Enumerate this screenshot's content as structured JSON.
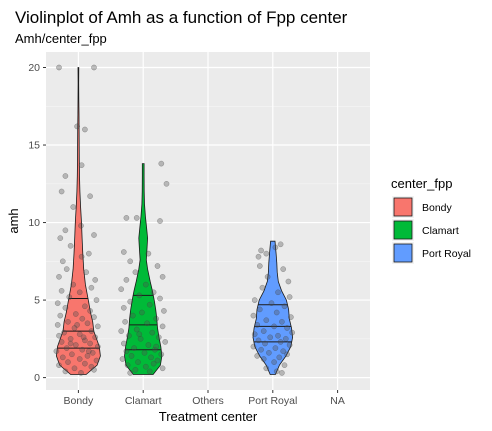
{
  "chart_data": {
    "type": "violin",
    "title": "Violinplot of Amh as a function of Fpp center",
    "subtitle": "Amh/center_fpp",
    "xlabel": "Treatment center",
    "ylabel": "amh",
    "categories": [
      "Bondy",
      "Clamart",
      "Others",
      "Port Royal",
      "NA"
    ],
    "ylim": [
      -0.8,
      21.0
    ],
    "yticks": [
      0,
      5,
      10,
      15,
      20
    ],
    "grid": true,
    "legend": {
      "title": "center_fpp",
      "placement": "right",
      "entries": [
        {
          "label": "Bondy",
          "color": "#F8766D"
        },
        {
          "label": "Clamart",
          "color": "#00BA38"
        },
        {
          "label": "Port Royal",
          "color": "#619CFF"
        }
      ]
    },
    "series": [
      {
        "category": "Bondy",
        "color": "#F8766D",
        "min": 0.2,
        "max": 20.0,
        "quantiles": [
          1.9,
          3.0,
          5.1
        ],
        "density": [
          [
            0.2,
            0.35
          ],
          [
            0.8,
            0.85
          ],
          [
            1.4,
            1.0
          ],
          [
            2.0,
            0.95
          ],
          [
            2.6,
            0.8
          ],
          [
            3.0,
            0.7
          ],
          [
            3.6,
            0.65
          ],
          [
            4.2,
            0.55
          ],
          [
            5.0,
            0.45
          ],
          [
            6.0,
            0.32
          ],
          [
            7.0,
            0.24
          ],
          [
            8.0,
            0.2
          ],
          [
            9.0,
            0.17
          ],
          [
            10.0,
            0.14
          ],
          [
            11.0,
            0.1
          ],
          [
            12.0,
            0.07
          ],
          [
            13.0,
            0.05
          ],
          [
            14.0,
            0.04
          ],
          [
            15.0,
            0.035
          ],
          [
            16.0,
            0.03
          ],
          [
            17.0,
            0.025
          ],
          [
            18.0,
            0.02
          ],
          [
            19.0,
            0.015
          ],
          [
            20.0,
            0.02
          ]
        ],
        "points": [
          [
            -0.3,
            20.0
          ],
          [
            0.24,
            20.0
          ],
          [
            0.1,
            16.0
          ],
          [
            -0.02,
            16.2
          ],
          [
            -0.2,
            13.0
          ],
          [
            0.05,
            13.7
          ],
          [
            -0.26,
            12.0
          ],
          [
            0.18,
            11.7
          ],
          [
            -0.08,
            11.0
          ],
          [
            -0.2,
            9.5
          ],
          [
            0.04,
            9.8
          ],
          [
            -0.28,
            9.0
          ],
          [
            0.24,
            9.2
          ],
          [
            -0.12,
            8.5
          ],
          [
            0.16,
            8.0
          ],
          [
            -0.24,
            7.5
          ],
          [
            0.05,
            7.8
          ],
          [
            -0.18,
            7.0
          ],
          [
            0.12,
            6.8
          ],
          [
            -0.3,
            6.5
          ],
          [
            0.26,
            6.3
          ],
          [
            -0.08,
            6.0
          ],
          [
            0.2,
            5.8
          ],
          [
            -0.26,
            5.6
          ],
          [
            0.02,
            5.5
          ],
          [
            -0.14,
            5.2
          ],
          [
            0.28,
            5.0
          ],
          [
            -0.32,
            4.8
          ],
          [
            0.1,
            4.6
          ],
          [
            -0.2,
            4.5
          ],
          [
            0.18,
            4.3
          ],
          [
            -0.04,
            4.1
          ],
          [
            -0.28,
            4.0
          ],
          [
            0.24,
            3.9
          ],
          [
            0.06,
            3.8
          ],
          [
            -0.16,
            3.6
          ],
          [
            0.14,
            3.5
          ],
          [
            -0.32,
            3.4
          ],
          [
            0.3,
            3.3
          ],
          [
            -0.06,
            3.2
          ],
          [
            0.2,
            3.0
          ],
          [
            -0.22,
            2.9
          ],
          [
            0.02,
            2.8
          ],
          [
            -0.3,
            2.7
          ],
          [
            0.26,
            2.6
          ],
          [
            -0.12,
            2.5
          ],
          [
            0.1,
            2.4
          ],
          [
            -0.26,
            2.3
          ],
          [
            0.18,
            2.2
          ],
          [
            -0.04,
            2.1
          ],
          [
            0.3,
            2.0
          ],
          [
            -0.18,
            1.9
          ],
          [
            0.06,
            1.8
          ],
          [
            -0.34,
            1.7
          ],
          [
            0.22,
            1.6
          ],
          [
            -0.1,
            1.5
          ],
          [
            0.14,
            1.4
          ],
          [
            -0.24,
            1.3
          ],
          [
            0.02,
            1.2
          ],
          [
            0.28,
            1.1
          ],
          [
            -0.16,
            1.0
          ],
          [
            0.1,
            0.9
          ],
          [
            -0.3,
            0.8
          ],
          [
            0.2,
            0.7
          ],
          [
            -0.06,
            0.6
          ],
          [
            0.24,
            0.5
          ],
          [
            -0.2,
            0.4
          ],
          [
            0.04,
            0.3
          ],
          [
            -0.12,
            2.2
          ],
          [
            0.16,
            1.7
          ],
          [
            -0.02,
            3.4
          ],
          [
            0.08,
            2.6
          ]
        ]
      },
      {
        "category": "Clamart",
        "color": "#00BA38",
        "min": 0.2,
        "max": 13.8,
        "quantiles": [
          1.8,
          3.4,
          5.3
        ],
        "density": [
          [
            0.2,
            0.45
          ],
          [
            0.8,
            0.78
          ],
          [
            1.4,
            0.85
          ],
          [
            2.0,
            0.8
          ],
          [
            2.6,
            0.72
          ],
          [
            3.2,
            0.65
          ],
          [
            3.8,
            0.62
          ],
          [
            4.4,
            0.57
          ],
          [
            5.0,
            0.5
          ],
          [
            5.6,
            0.42
          ],
          [
            6.2,
            0.32
          ],
          [
            7.0,
            0.2
          ],
          [
            7.6,
            0.14
          ],
          [
            8.2,
            0.17
          ],
          [
            9.0,
            0.2
          ],
          [
            9.6,
            0.16
          ],
          [
            10.4,
            0.1
          ],
          [
            11.2,
            0.06
          ],
          [
            12.0,
            0.045
          ],
          [
            13.0,
            0.04
          ],
          [
            13.8,
            0.04
          ]
        ],
        "points": [
          [
            0.28,
            13.8
          ],
          [
            0.36,
            12.5
          ],
          [
            -0.26,
            10.3
          ],
          [
            -0.1,
            10.3
          ],
          [
            0.26,
            10.1
          ],
          [
            -0.3,
            8.1
          ],
          [
            0.08,
            8.0
          ],
          [
            -0.2,
            7.5
          ],
          [
            0.22,
            7.2
          ],
          [
            -0.12,
            6.8
          ],
          [
            0.3,
            6.5
          ],
          [
            -0.26,
            6.3
          ],
          [
            0.04,
            6.0
          ],
          [
            -0.34,
            5.7
          ],
          [
            0.16,
            5.5
          ],
          [
            -0.06,
            5.3
          ],
          [
            0.26,
            5.1
          ],
          [
            -0.2,
            4.9
          ],
          [
            0.1,
            4.7
          ],
          [
            -0.3,
            4.5
          ],
          [
            0.32,
            4.3
          ],
          [
            -0.02,
            4.2
          ],
          [
            -0.16,
            4.0
          ],
          [
            0.2,
            3.8
          ],
          [
            -0.28,
            3.6
          ],
          [
            0.06,
            3.5
          ],
          [
            0.3,
            3.3
          ],
          [
            -0.1,
            3.1
          ],
          [
            -0.34,
            3.0
          ],
          [
            0.14,
            2.9
          ],
          [
            -0.22,
            2.7
          ],
          [
            0.24,
            2.6
          ],
          [
            -0.04,
            2.5
          ],
          [
            0.34,
            2.3
          ],
          [
            -0.3,
            2.2
          ],
          [
            0.08,
            2.1
          ],
          [
            -0.14,
            1.9
          ],
          [
            0.18,
            1.8
          ],
          [
            -0.26,
            1.7
          ],
          [
            0.02,
            1.6
          ],
          [
            0.28,
            1.5
          ],
          [
            -0.18,
            1.4
          ],
          [
            0.12,
            1.3
          ],
          [
            -0.32,
            1.2
          ],
          [
            0.22,
            1.1
          ],
          [
            -0.08,
            1.0
          ],
          [
            0.16,
            0.9
          ],
          [
            -0.24,
            0.8
          ],
          [
            0.04,
            0.7
          ],
          [
            0.3,
            0.6
          ],
          [
            -0.12,
            0.5
          ],
          [
            0.1,
            0.4
          ],
          [
            -0.2,
            0.3
          ],
          [
            0.2,
            2.0
          ],
          [
            -0.06,
            2.8
          ]
        ]
      },
      {
        "category": "Port Royal",
        "color": "#619CFF",
        "min": 0.2,
        "max": 8.8,
        "quantiles": [
          2.3,
          3.3,
          4.7
        ],
        "density": [
          [
            0.2,
            0.12
          ],
          [
            0.8,
            0.3
          ],
          [
            1.4,
            0.6
          ],
          [
            2.0,
            0.82
          ],
          [
            2.6,
            0.9
          ],
          [
            3.2,
            0.85
          ],
          [
            3.8,
            0.75
          ],
          [
            4.4,
            0.72
          ],
          [
            5.0,
            0.62
          ],
          [
            5.6,
            0.4
          ],
          [
            6.2,
            0.25
          ],
          [
            6.8,
            0.2
          ],
          [
            7.4,
            0.18
          ],
          [
            8.0,
            0.15
          ],
          [
            8.8,
            0.1
          ]
        ],
        "points": [
          [
            -0.18,
            8.2
          ],
          [
            -0.1,
            8.0
          ],
          [
            0.12,
            8.6
          ],
          [
            0.04,
            8.4
          ],
          [
            -0.22,
            7.8
          ],
          [
            -0.2,
            7.2
          ],
          [
            0.16,
            7.0
          ],
          [
            -0.08,
            6.5
          ],
          [
            0.24,
            6.2
          ],
          [
            -0.16,
            5.8
          ],
          [
            0.08,
            5.5
          ],
          [
            0.26,
            5.2
          ],
          [
            -0.28,
            5.0
          ],
          [
            -0.02,
            4.8
          ],
          [
            0.18,
            4.6
          ],
          [
            -0.2,
            4.4
          ],
          [
            0.06,
            4.2
          ],
          [
            -0.3,
            4.0
          ],
          [
            0.28,
            3.9
          ],
          [
            -0.1,
            3.7
          ],
          [
            0.14,
            3.6
          ],
          [
            -0.24,
            3.4
          ],
          [
            0.02,
            3.3
          ],
          [
            0.22,
            3.2
          ],
          [
            -0.14,
            3.0
          ],
          [
            0.3,
            2.9
          ],
          [
            -0.28,
            2.8
          ],
          [
            0.08,
            2.7
          ],
          [
            -0.04,
            2.6
          ],
          [
            0.2,
            2.5
          ],
          [
            -0.22,
            2.4
          ],
          [
            0.12,
            2.3
          ],
          [
            -0.12,
            2.2
          ],
          [
            0.26,
            2.1
          ],
          [
            -0.3,
            2.0
          ],
          [
            0.04,
            1.9
          ],
          [
            -0.18,
            1.8
          ],
          [
            0.16,
            1.7
          ],
          [
            -0.06,
            1.6
          ],
          [
            0.22,
            1.5
          ],
          [
            -0.24,
            1.4
          ],
          [
            0.1,
            1.3
          ],
          [
            -0.14,
            1.2
          ],
          [
            0.02,
            1.0
          ],
          [
            0.18,
            0.8
          ],
          [
            -0.1,
            0.6
          ],
          [
            0.06,
            0.4
          ],
          [
            0.14,
            0.3
          ]
        ]
      }
    ]
  }
}
